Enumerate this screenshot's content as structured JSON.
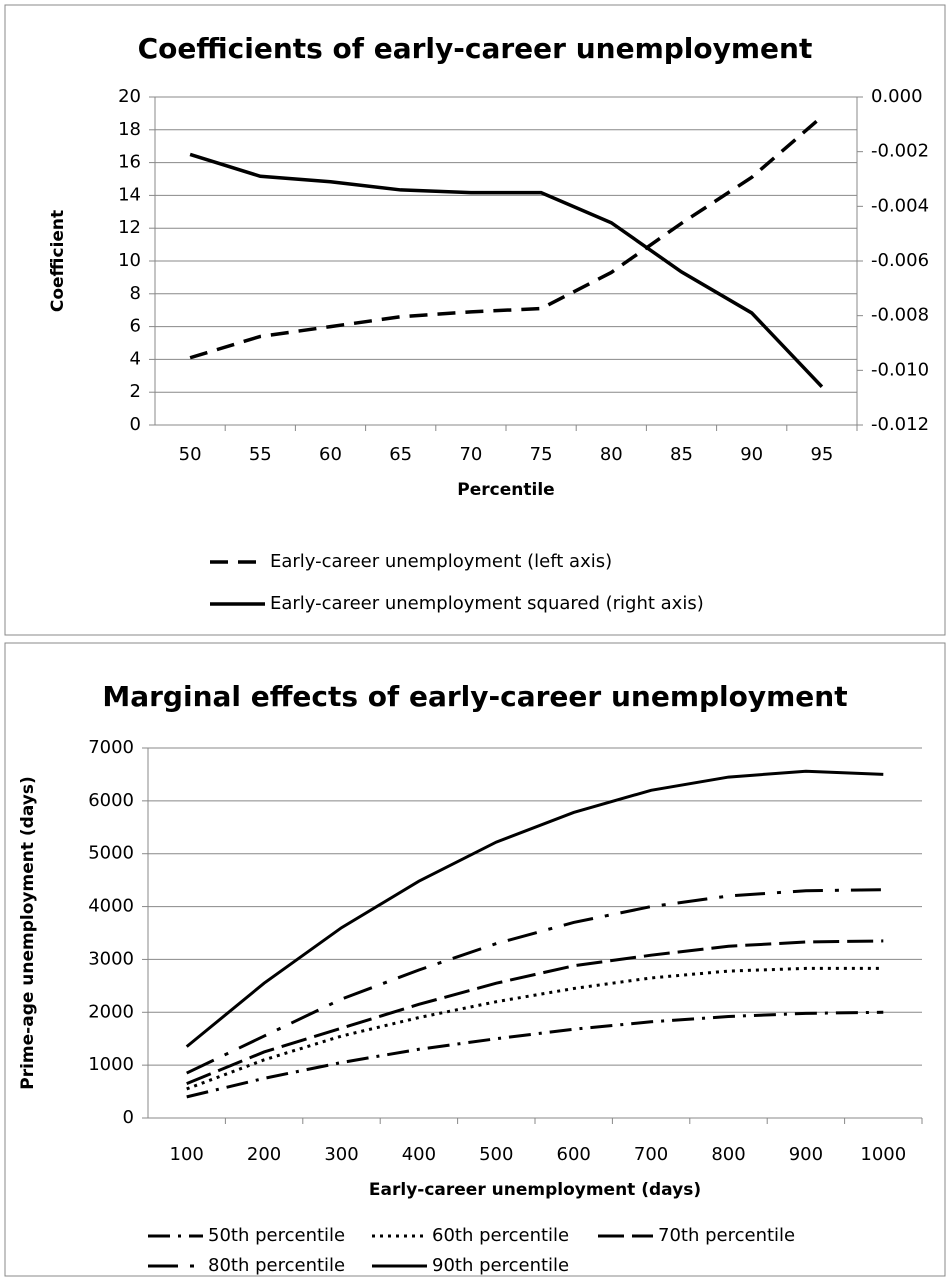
{
  "chart_data": [
    {
      "type": "line",
      "title": "Coefficients of early-career unemployment",
      "x_label": "Percentile",
      "y_label": "Coefficient",
      "categories": [
        "50",
        "55",
        "60",
        "65",
        "70",
        "75",
        "80",
        "85",
        "90",
        "95"
      ],
      "ylim": [
        0,
        20
      ],
      "yticks": [
        0,
        2,
        4,
        6,
        8,
        10,
        12,
        14,
        16,
        18,
        20
      ],
      "y2lim": [
        -0.012,
        0
      ],
      "y2ticks": [
        {
          "value": -0.012,
          "label": "-0.012"
        },
        {
          "value": -0.01,
          "label": "-0.010"
        },
        {
          "value": -0.008,
          "label": "-0.008"
        },
        {
          "value": -0.006,
          "label": "-0.006"
        },
        {
          "value": -0.004,
          "label": "-0.004"
        },
        {
          "value": -0.002,
          "label": "-0.002"
        },
        {
          "value": 0,
          "label": "0.000"
        }
      ],
      "grid": true,
      "series": [
        {
          "name": "Early-career unemployment (left axis)",
          "color": "#000000",
          "values": [
            4.1,
            5.4,
            6.0,
            6.6,
            6.9,
            7.1,
            9.3,
            12.3,
            15.1,
            18.8
          ]
        },
        {
          "name": "Early-career unemployment squared (right axis)",
          "color": "#000000",
          "axis": "y2",
          "values": [
            -0.0021,
            -0.0029,
            -0.0031,
            -0.0034,
            -0.0035,
            -0.0035,
            -0.0046,
            -0.0064,
            -0.0079,
            -0.0106
          ]
        }
      ]
    },
    {
      "type": "line",
      "title": "Marginal effects of early-career unemployment",
      "x_label": "Early-career unemployment (days)",
      "y_label": "Prime-age unemployment (days)",
      "categories": [
        "100",
        "200",
        "300",
        "400",
        "500",
        "600",
        "700",
        "800",
        "900",
        "1000"
      ],
      "ylim": [
        0,
        7000
      ],
      "yticks": [
        0,
        1000,
        2000,
        3000,
        4000,
        5000,
        6000,
        7000
      ],
      "grid": true,
      "series": [
        {
          "name": "50th percentile",
          "color": "#000000",
          "values": [
            400,
            750,
            1050,
            1300,
            1500,
            1680,
            1820,
            1920,
            1980,
            2000
          ]
        },
        {
          "name": "60th percentile",
          "color": "#000000",
          "values": [
            550,
            1100,
            1550,
            1900,
            2200,
            2450,
            2650,
            2780,
            2830,
            2830
          ]
        },
        {
          "name": "70th percentile",
          "color": "#000000",
          "values": [
            650,
            1250,
            1700,
            2150,
            2550,
            2880,
            3080,
            3250,
            3330,
            3350
          ]
        },
        {
          "name": "80th percentile",
          "color": "#000000",
          "values": [
            850,
            1550,
            2250,
            2800,
            3300,
            3700,
            4000,
            4200,
            4300,
            4320
          ]
        },
        {
          "name": "90th percentile",
          "color": "#000000",
          "values": [
            1350,
            2550,
            3600,
            4480,
            5220,
            5780,
            6200,
            6450,
            6560,
            6500
          ]
        }
      ]
    }
  ]
}
